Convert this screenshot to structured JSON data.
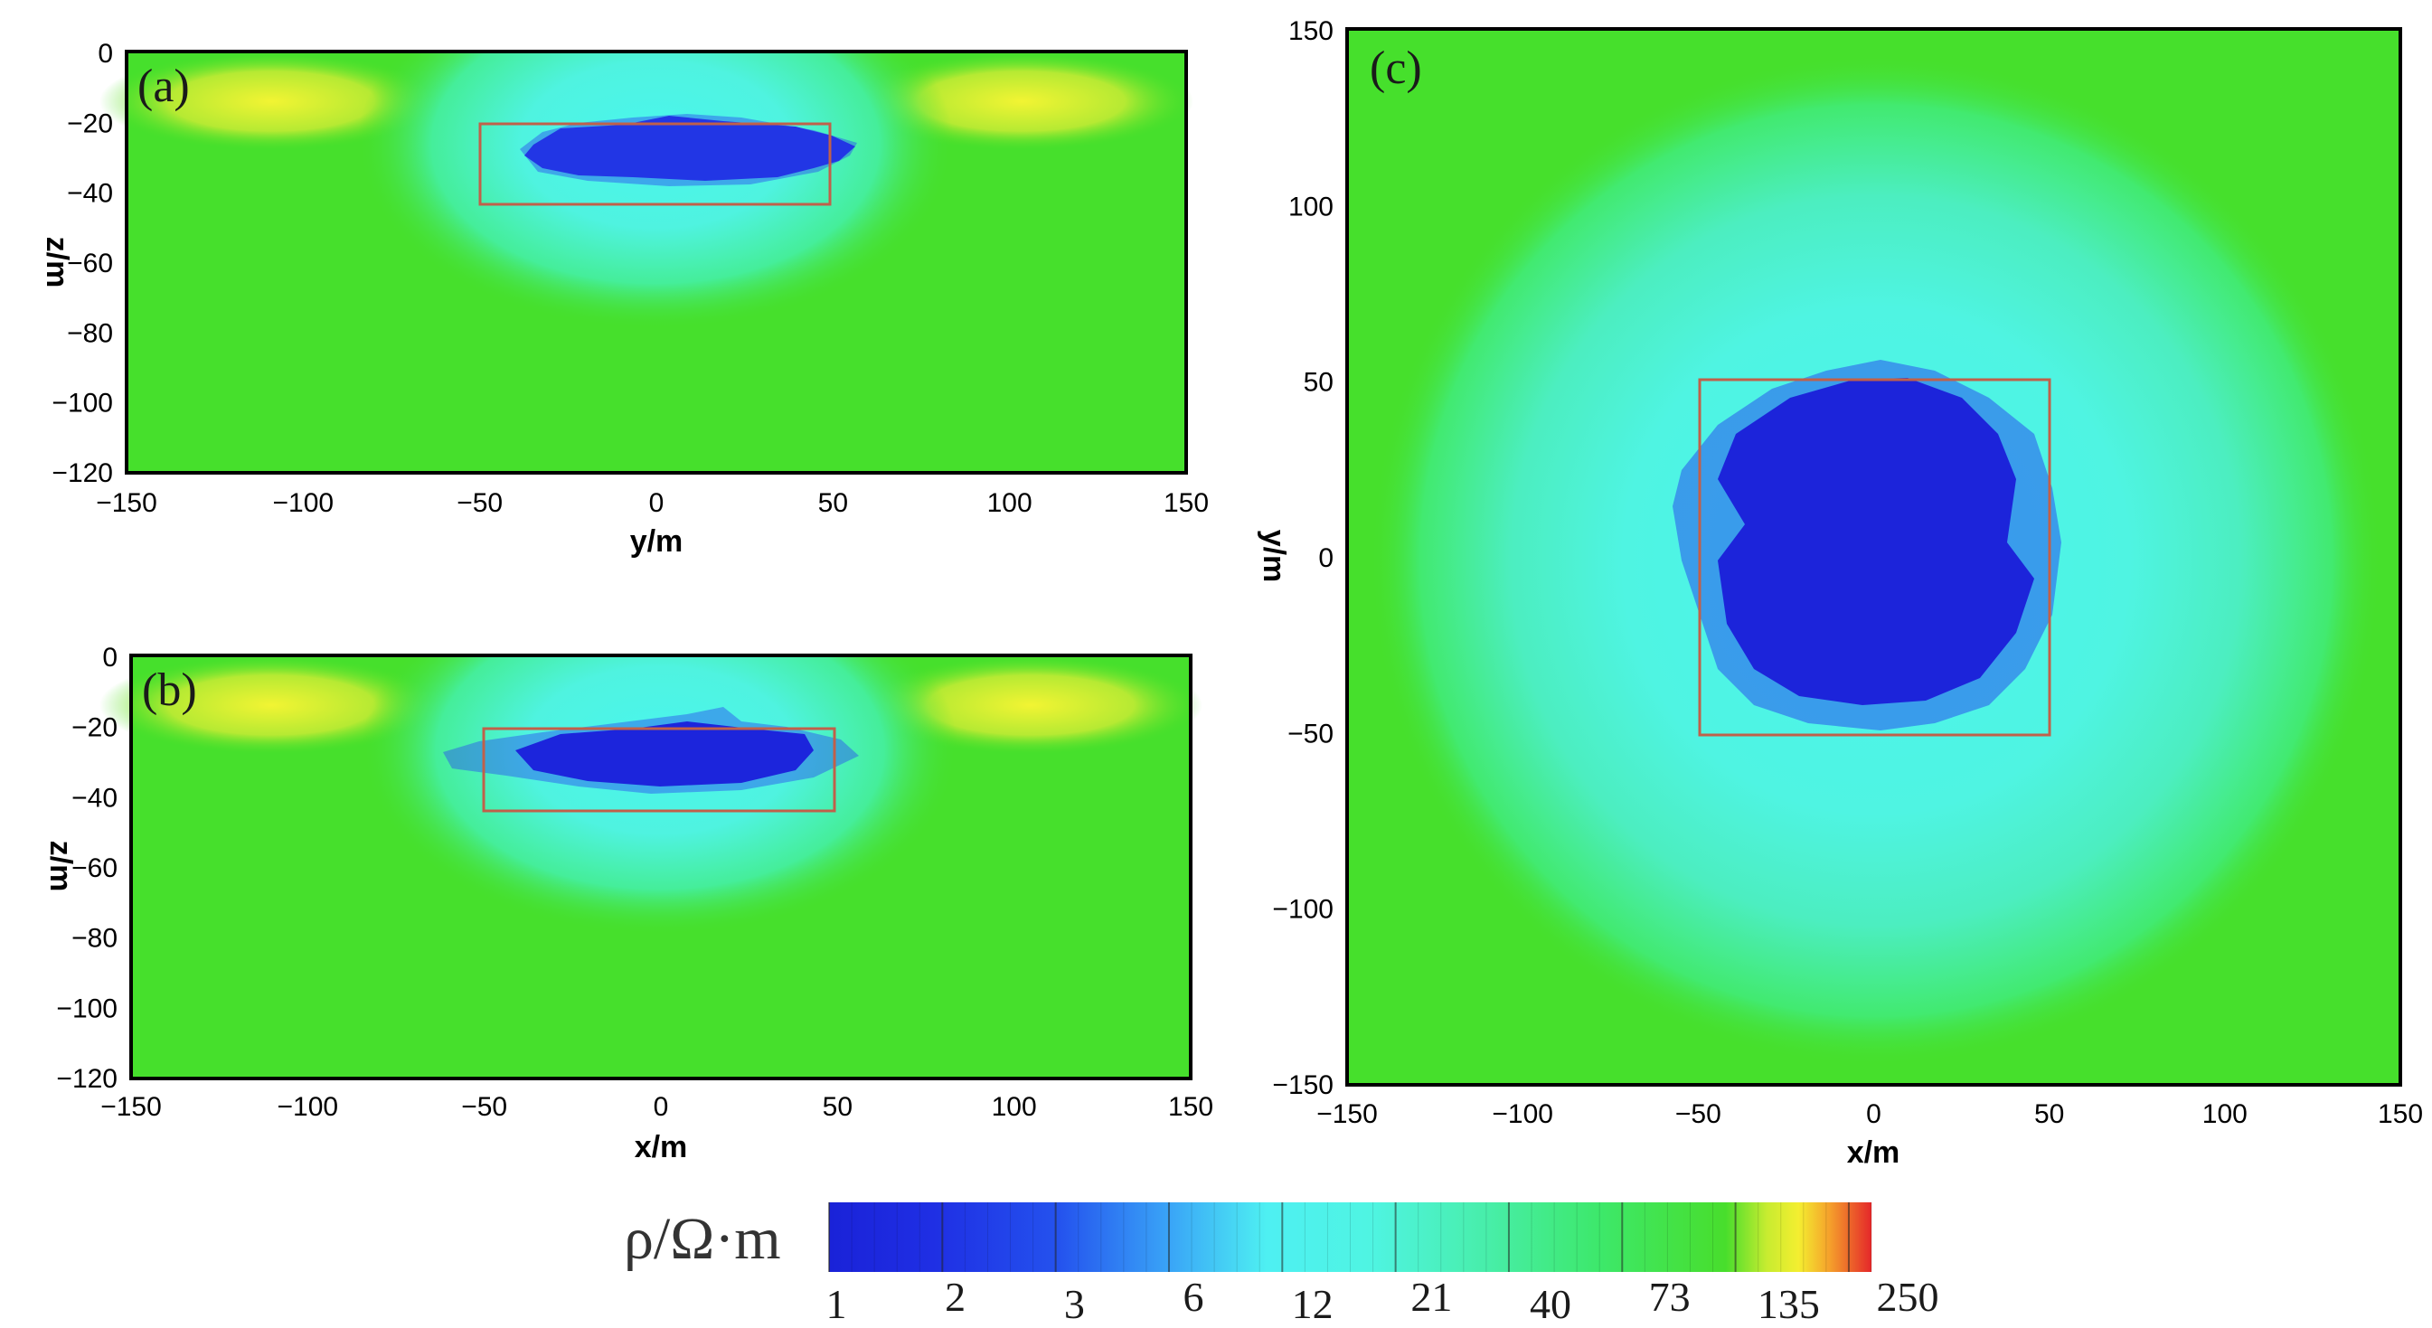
{
  "chart_data": [
    {
      "type": "heatmap",
      "panel_label": "(a)",
      "xlabel": "y/m",
      "ylabel": "z/m",
      "xlim": [
        -150,
        150
      ],
      "ylim": [
        -120,
        0
      ],
      "xticks": [
        "-150",
        "-100",
        "-50",
        "0",
        "50",
        "100",
        "150"
      ],
      "yticks": [
        "0",
        "-20",
        "-40",
        "-60",
        "-80",
        "-100",
        "-120"
      ],
      "background_resistivity": 100,
      "anomaly_box": {
        "x": [
          -50,
          50
        ],
        "y": [
          -43,
          -20
        ]
      },
      "anomaly_body": {
        "x": [
          -38,
          57
        ],
        "y": [
          -35,
          -19
        ],
        "resistivity": 1
      }
    },
    {
      "type": "heatmap",
      "panel_label": "(b)",
      "xlabel": "x/m",
      "ylabel": "z/m",
      "xlim": [
        -150,
        150
      ],
      "ylim": [
        -120,
        0
      ],
      "xticks": [
        "-150",
        "-100",
        "-50",
        "0",
        "50",
        "100",
        "150"
      ],
      "yticks": [
        "0",
        "-20",
        "-40",
        "-60",
        "-80",
        "-100",
        "-120"
      ],
      "background_resistivity": 100,
      "anomaly_box": {
        "x": [
          -50,
          50
        ],
        "y": [
          -44,
          -20
        ]
      },
      "anomaly_body": {
        "x": [
          -45,
          55
        ],
        "y": [
          -38,
          -14
        ],
        "resistivity": 1
      }
    },
    {
      "type": "heatmap",
      "panel_label": "(c)",
      "xlabel": "x/m",
      "ylabel": "y/m",
      "xlim": [
        -150,
        150
      ],
      "ylim": [
        -150,
        150
      ],
      "xticks": [
        "-150",
        "-100",
        "-50",
        "0",
        "50",
        "100",
        "150"
      ],
      "yticks": [
        "150",
        "100",
        "50",
        "0",
        "-50",
        "-100",
        "-150"
      ],
      "background_resistivity": 100,
      "anomaly_box": {
        "x": [
          -50,
          50
        ],
        "y": [
          -50,
          51
        ]
      },
      "anomaly_body": {
        "x": [
          -55,
          55
        ],
        "y": [
          -50,
          55
        ],
        "resistivity": 1
      }
    }
  ],
  "colorbar": {
    "title": "ρ/Ω·m",
    "ticks": [
      "1",
      "2",
      "3",
      "6",
      "12",
      "21",
      "40",
      "73",
      "135",
      "250"
    ],
    "colors": [
      "#1a22d8",
      "#1f46ea",
      "#2d86f3",
      "#40d4f8",
      "#4ef2e4",
      "#4ff0c0",
      "#3ef083",
      "#38e43a",
      "#46e02c",
      "#f3f230",
      "#f5a32b",
      "#e6302a"
    ]
  }
}
